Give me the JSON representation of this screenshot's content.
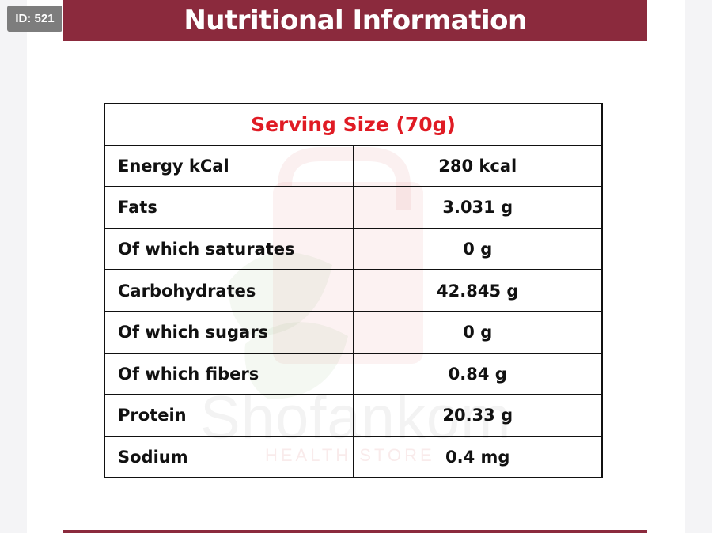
{
  "badge": {
    "id_text": "ID: 521"
  },
  "header": {
    "title": "Nutritional Information"
  },
  "watermark": {
    "brand": "Shofankom",
    "tagline": "HEALTH STORE"
  },
  "table": {
    "serving_size": "Serving Size (70g)",
    "rows": [
      {
        "label": "Energy kCal",
        "value": "280 kcal"
      },
      {
        "label": "Fats",
        "value": "3.031 g"
      },
      {
        "label": "Of which saturates",
        "value": "0 g"
      },
      {
        "label": "Carbohydrates",
        "value": "42.845 g"
      },
      {
        "label": "Of which sugars",
        "value": "0 g"
      },
      {
        "label": "Of which fibers",
        "value": "0.84 g"
      },
      {
        "label": "Protein",
        "value": "20.33 g"
      },
      {
        "label": "Sodium",
        "value": "0.4 mg"
      }
    ]
  },
  "colors": {
    "brand_maroon": "#8b2a3d",
    "serving_red": "#e01b24",
    "text": "#111111"
  }
}
